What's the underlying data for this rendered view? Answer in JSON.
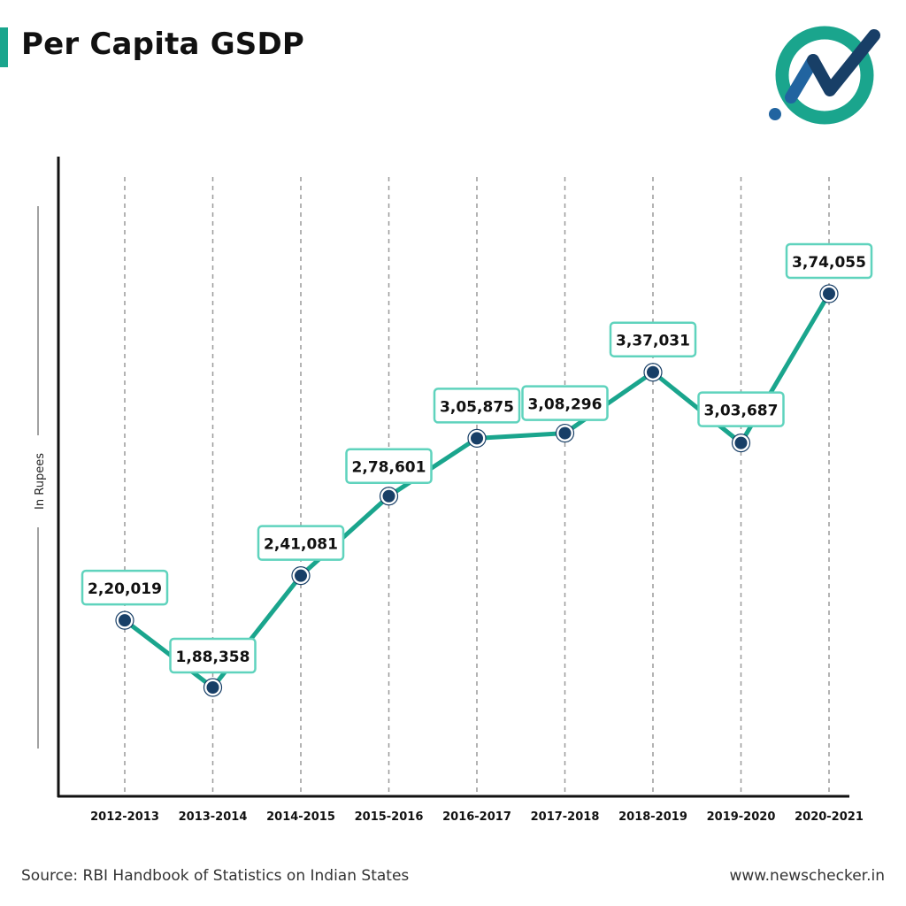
{
  "title": "Per Capita GSDP",
  "colors": {
    "accent": "#1aa58d",
    "line": "#1aa58d",
    "point": "#183f67",
    "label_border": "#5fd3bd",
    "logo_ring": "#1aa58d",
    "logo_dark": "#183f67",
    "logo_blue": "#2164a0"
  },
  "logo": {
    "icon": "newschecker-logo-icon"
  },
  "footer": {
    "source": "Source: RBI Handbook of Statistics on Indian States",
    "website": "www.newschecker.in"
  },
  "chart_data": {
    "type": "line",
    "title": "Per Capita GSDP",
    "xlabel": "",
    "ylabel": "In Rupees",
    "categories": [
      "2012-2013",
      "2013-2014",
      "2014-2015",
      "2015-2016",
      "2016-2017",
      "2017-2018",
      "2018-2019",
      "2019-2020",
      "2020-2021"
    ],
    "series": [
      {
        "name": "Per Capita GSDP",
        "values": [
          220019,
          188358,
          241081,
          278601,
          305875,
          308296,
          337031,
          303687,
          374055
        ],
        "labels": [
          "2,20,019",
          "1,88,358",
          "2,41,081",
          "2,78,601",
          "3,05,875",
          "3,08,296",
          "3,37,031",
          "3,03,687",
          "3,74,055"
        ]
      }
    ],
    "ylim": [
      140000,
      420000
    ],
    "grid": "vertical-dashed",
    "legend": "none"
  }
}
